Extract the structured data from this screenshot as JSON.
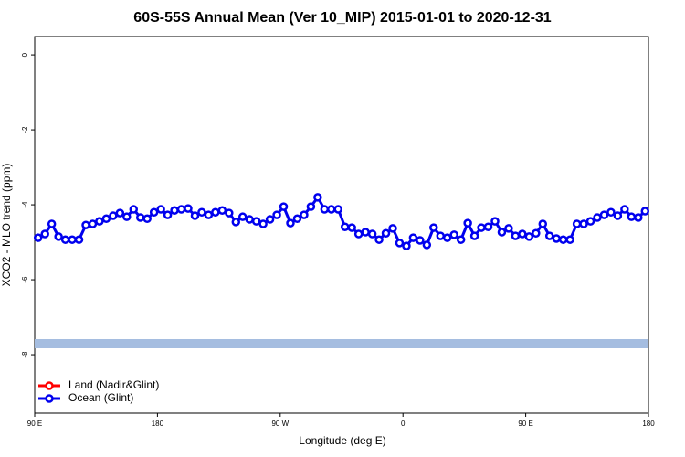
{
  "chart_data": {
    "type": "line",
    "title": "60S-55S Annual Mean (Ver 10_MIP)   2015-01-01 to 2020-12-31",
    "x_label": "Longitude (deg E)",
    "y_label": "XCO2 - MLO trend (ppm)",
    "xlim": [
      90,
      540
    ],
    "xticks": [
      {
        "value": 90,
        "label": "90 E"
      },
      180,
      {
        "value": 270,
        "label": "90 W"
      },
      {
        "value": 360,
        "label": "0"
      },
      {
        "value": 450,
        "label": "90 E"
      },
      {
        "value": 540,
        "label": "180"
      }
    ],
    "ylim": [
      -9.56,
      0.49
    ],
    "yticks": [
      0,
      -2,
      -4,
      -6,
      -8
    ],
    "legend": "bottom-left",
    "x": [
      92.5,
      97.5,
      102.5,
      107.5,
      112.5,
      117.5,
      122.5,
      127.5,
      132.5,
      137.5,
      142.5,
      147.5,
      152.5,
      157.5,
      162.5,
      167.5,
      172.5,
      177.5,
      182.5,
      187.5,
      192.5,
      197.5,
      202.5,
      207.5,
      212.5,
      217.5,
      222.5,
      227.5,
      232.5,
      237.5,
      242.5,
      247.5,
      252.5,
      257.5,
      262.5,
      267.5,
      272.5,
      277.5,
      282.5,
      287.5,
      292.5,
      297.5,
      302.5,
      307.5,
      312.5,
      317.5,
      322.5,
      327.5,
      332.5,
      337.5,
      342.5,
      347.5,
      352.5,
      357.5,
      362.5,
      367.5,
      372.5,
      377.5,
      382.5,
      387.5,
      392.5,
      397.5,
      402.5,
      407.5,
      412.5,
      417.5,
      422.5,
      427.5,
      432.5,
      437.5,
      442.5,
      447.5,
      452.5,
      457.5,
      462.5,
      467.5,
      472.5,
      477.5,
      482.5,
      487.5,
      492.5,
      497.5,
      502.5,
      507.5,
      512.5,
      517.5,
      522.5,
      527.5,
      532.5,
      537.5
    ],
    "series": [
      {
        "name": "Land (Nadir&Glint)",
        "color": "#ff0000",
        "values": [
          null,
          null,
          null,
          null,
          null,
          null,
          null,
          null,
          null,
          null,
          null,
          null,
          null,
          null,
          null,
          null,
          null,
          null,
          null,
          null,
          null,
          null,
          null,
          null,
          null,
          null,
          null,
          null,
          null,
          null,
          null,
          null,
          null,
          null,
          null,
          null,
          null,
          null,
          null,
          null,
          null,
          null,
          null,
          null,
          null,
          null,
          null,
          null,
          null,
          null,
          null,
          null,
          null,
          null,
          null,
          null,
          null,
          null,
          null,
          null,
          null,
          null,
          null,
          null,
          null,
          null,
          null,
          null,
          null,
          null,
          null,
          null,
          null,
          null,
          null,
          null,
          null,
          null,
          null,
          null,
          null,
          null,
          null,
          null,
          null,
          null,
          null,
          null,
          null,
          null
        ]
      },
      {
        "name": "Ocean (Glint)",
        "color": "#0000ee",
        "values": [
          -4.88,
          -4.78,
          -4.51,
          -4.85,
          -4.93,
          -4.93,
          -4.93,
          -4.54,
          -4.51,
          -4.44,
          -4.37,
          -4.29,
          -4.22,
          -4.32,
          -4.12,
          -4.34,
          -4.37,
          -4.2,
          -4.12,
          -4.27,
          -4.15,
          -4.12,
          -4.1,
          -4.29,
          -4.2,
          -4.27,
          -4.2,
          -4.15,
          -4.22,
          -4.46,
          -4.32,
          -4.39,
          -4.44,
          -4.51,
          -4.39,
          -4.27,
          -4.05,
          -4.49,
          -4.37,
          -4.27,
          -4.05,
          -3.8,
          -4.12,
          -4.12,
          -4.12,
          -4.59,
          -4.61,
          -4.78,
          -4.73,
          -4.78,
          -4.93,
          -4.76,
          -4.63,
          -5.02,
          -5.1,
          -4.88,
          -4.95,
          -5.07,
          -4.61,
          -4.83,
          -4.88,
          -4.8,
          -4.93,
          -4.49,
          -4.83,
          -4.61,
          -4.59,
          -4.44,
          -4.73,
          -4.63,
          -4.83,
          -4.78,
          -4.85,
          -4.76,
          -4.51,
          -4.83,
          -4.9,
          -4.93,
          -4.93,
          -4.51,
          -4.51,
          -4.44,
          -4.34,
          -4.27,
          -4.2,
          -4.29,
          -4.12,
          -4.32,
          -4.34,
          -4.17
        ]
      }
    ]
  }
}
